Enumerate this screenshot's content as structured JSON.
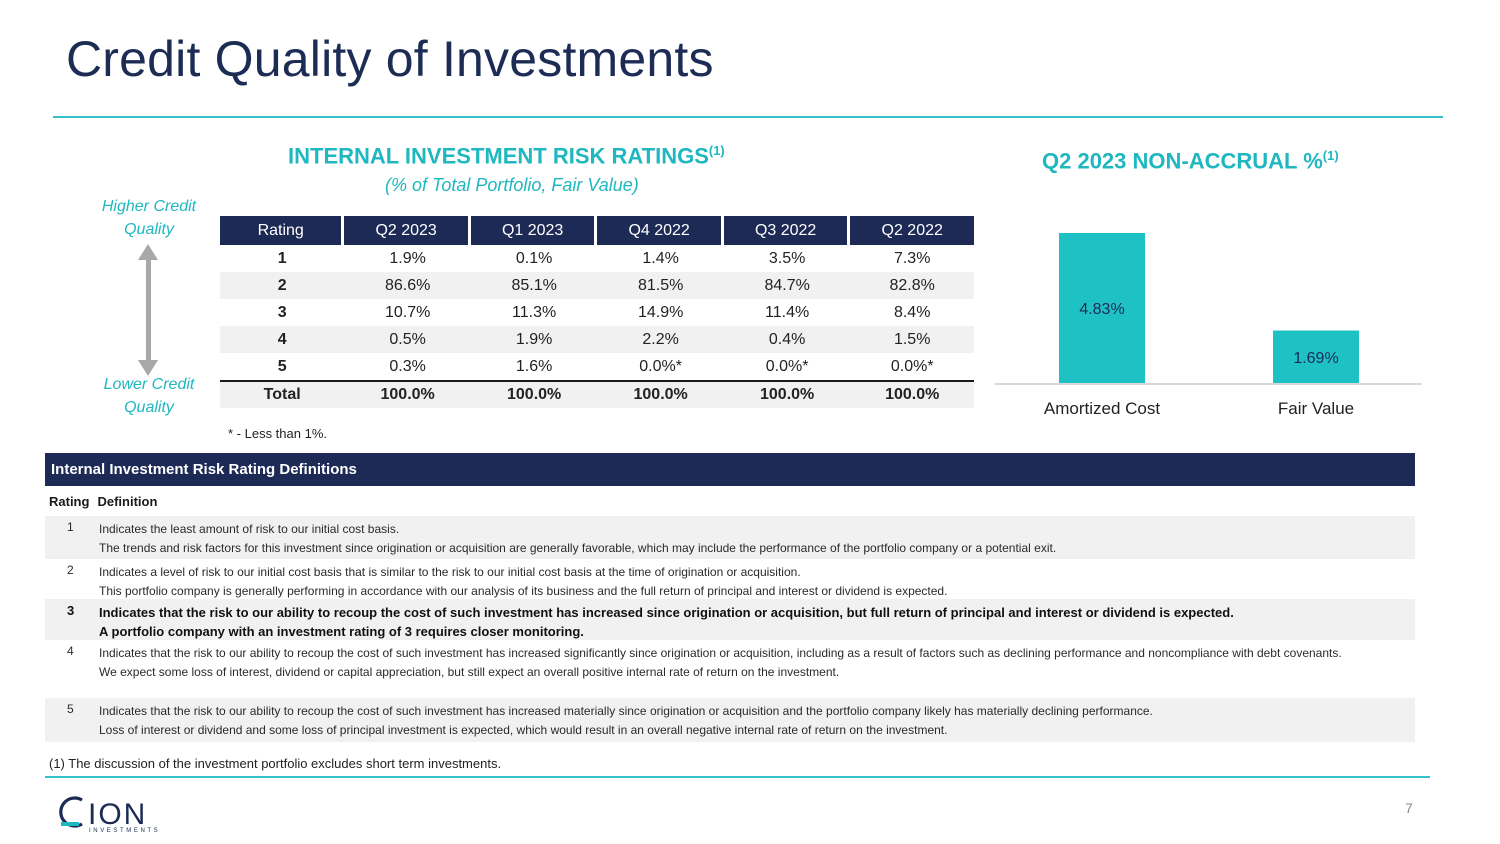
{
  "title": "Credit Quality of Investments",
  "ratings_section": {
    "heading": "INTERNAL INVESTMENT RISK RATINGS",
    "heading_sup": "(1)",
    "subheading": "(% of Total Portfolio, Fair Value)",
    "higher_label": "Higher Credit Quality",
    "lower_label": "Lower Credit Quality",
    "columns": [
      "Rating",
      "Q2 2023",
      "Q1 2023",
      "Q4 2022",
      "Q3 2022",
      "Q2 2022"
    ],
    "rows": [
      [
        "1",
        "1.9%",
        "0.1%",
        "1.4%",
        "3.5%",
        "7.3%"
      ],
      [
        "2",
        "86.6%",
        "85.1%",
        "81.5%",
        "84.7%",
        "82.8%"
      ],
      [
        "3",
        "10.7%",
        "11.3%",
        "14.9%",
        "11.4%",
        "8.4%"
      ],
      [
        "4",
        "0.5%",
        "1.9%",
        "2.2%",
        "0.4%",
        "1.5%"
      ],
      [
        "5",
        "0.3%",
        "1.6%",
        "0.0%*",
        "0.0%*",
        "0.0%*"
      ]
    ],
    "total_row": [
      "Total",
      "100.0%",
      "100.0%",
      "100.0%",
      "100.0%",
      "100.0%"
    ],
    "note": "* - Less than 1%."
  },
  "nonaccrual_section": {
    "heading": "Q2 2023 NON-ACCRUAL %",
    "heading_sup": "(1)"
  },
  "chart_data": {
    "type": "bar",
    "categories": [
      "Amortized Cost",
      "Fair Value"
    ],
    "values": [
      4.83,
      1.69
    ],
    "data_labels": [
      "4.83%",
      "1.69%"
    ],
    "bar_color": "#1fc2c4",
    "title": "Q2 2023 NON-ACCRUAL %",
    "xlabel": "",
    "ylabel": "",
    "ylim": [
      0,
      4.83
    ],
    "grid": false
  },
  "definitions": {
    "header": "Internal Investment Risk Rating Definitions",
    "col_rating": "Rating",
    "col_definition": "Definition",
    "items": [
      {
        "rating": "1",
        "lines": [
          "Indicates the least amount of risk to our initial cost basis.",
          "The trends and risk factors for this investment since origination or acquisition are generally favorable, which may include the performance of the portfolio company or a potential exit."
        ]
      },
      {
        "rating": "2",
        "lines": [
          "Indicates a level of risk to our initial cost basis that is similar to the risk to our initial cost basis at the time of origination or acquisition.",
          "This portfolio company is generally performing in accordance with our analysis of its business and the full return of principal and interest or dividend is expected."
        ]
      },
      {
        "rating": "3",
        "lines": [
          "Indicates that the risk to our ability to recoup the cost of such investment has increased since origination or acquisition, but full return of principal and interest or dividend is expected.",
          "A portfolio company with an investment rating of 3 requires closer monitoring."
        ]
      },
      {
        "rating": "4",
        "lines": [
          "Indicates that the risk to our ability to recoup the cost of such investment has increased significantly since origination or acquisition, including as a result of factors such as declining performance and noncompliance with debt covenants.",
          "We expect some loss of interest, dividend or capital appreciation, but still expect an overall positive internal rate of return on the investment."
        ]
      },
      {
        "rating": "5",
        "lines": [
          "Indicates that the risk to our ability to recoup the cost of such investment has increased materially since origination or acquisition and the portfolio company likely has materially declining performance.",
          "Loss of interest or dividend and some loss of principal investment is expected, which would result in an overall negative internal rate of return on the investment."
        ]
      }
    ]
  },
  "footnote": "(1)   The discussion of the investment portfolio excludes short term investments.",
  "logo": {
    "name": "CION",
    "tagline": "INVESTMENTS"
  },
  "page_number": "7",
  "colors": {
    "navy": "#1c2a55",
    "teal": "#1fb7c0"
  }
}
